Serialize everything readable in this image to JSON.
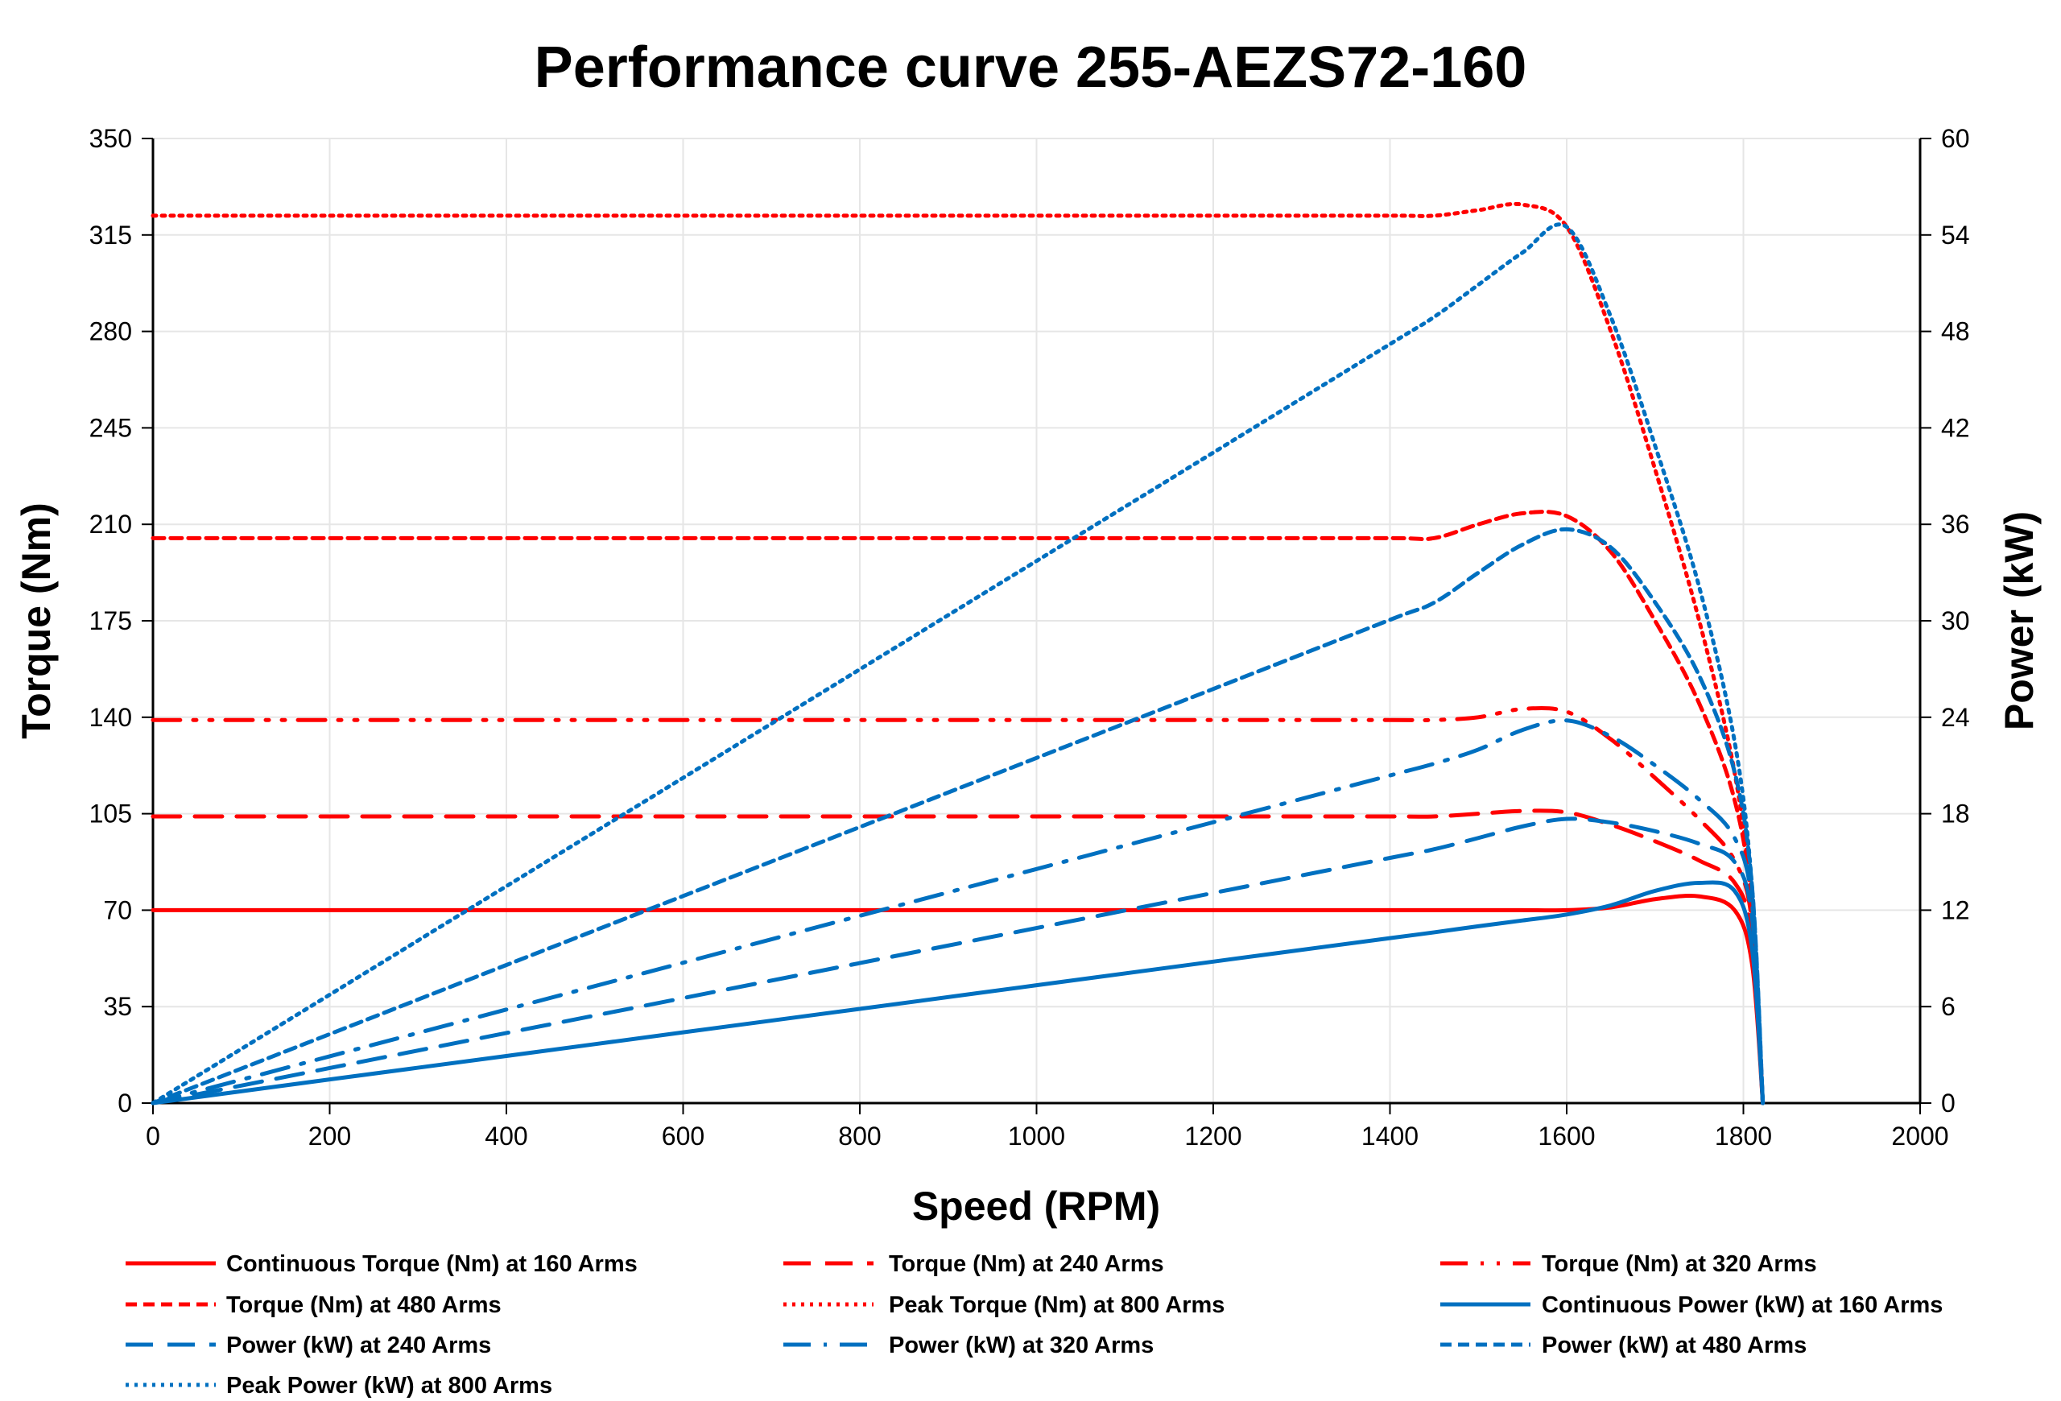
{
  "chart_data": {
    "type": "line",
    "title": "Performance curve 255-AEZS72-160",
    "xlabel": "Speed (RPM)",
    "ylabel": "Torque (Nm)",
    "y2label": "Power (kW)",
    "xlim": [
      0,
      2000
    ],
    "ylim": [
      0,
      350
    ],
    "y2lim": [
      0,
      60
    ],
    "xticks": [
      0,
      200,
      400,
      600,
      800,
      1000,
      1200,
      1400,
      1600,
      1800,
      2000
    ],
    "yticks": [
      0,
      35,
      70,
      105,
      140,
      175,
      210,
      245,
      280,
      315,
      350
    ],
    "y2ticks": [
      0,
      6,
      12,
      18,
      24,
      30,
      36,
      42,
      48,
      54,
      60
    ],
    "grid": true,
    "legend_position": "bottom",
    "colors": {
      "torque": "#ff0000",
      "power": "#0070c0"
    },
    "x": [
      0,
      200,
      400,
      600,
      800,
      1000,
      1200,
      1400,
      1450,
      1500,
      1550,
      1600,
      1650,
      1700,
      1750,
      1790,
      1810,
      1822
    ],
    "series": [
      {
        "name": "Continuous Torque (Nm) at 160 Arms",
        "axis": "left",
        "color": "#ff0000",
        "dash": "solid",
        "values": [
          70,
          70,
          70,
          70,
          70,
          70,
          70,
          70,
          70,
          70,
          70,
          70,
          71,
          74,
          75,
          70,
          50,
          0
        ]
      },
      {
        "name": "Torque (Nm) at 240 Arms",
        "axis": "left",
        "color": "#ff0000",
        "dash": "long-dash",
        "values": [
          104,
          104,
          104,
          104,
          104,
          104,
          104,
          104,
          104,
          105,
          106,
          105.5,
          101,
          95,
          88,
          80,
          60,
          0
        ]
      },
      {
        "name": "Torque (Nm) at 320 Arms",
        "axis": "left",
        "color": "#ff0000",
        "dash": "long-dash-dot-dot",
        "values": [
          139,
          139,
          139,
          139,
          139,
          139,
          139,
          139,
          139,
          140,
          143,
          142,
          132,
          118,
          103,
          88,
          65,
          0
        ]
      },
      {
        "name": "Torque (Nm) at 480 Arms",
        "axis": "left",
        "color": "#ff0000",
        "dash": "short-dash",
        "values": [
          205,
          205,
          205,
          205,
          205,
          205,
          205,
          205,
          205,
          210,
          214,
          213,
          200,
          175,
          145,
          110,
          70,
          0
        ]
      },
      {
        "name": "Peak Torque (Nm) at 800 Arms",
        "axis": "left",
        "color": "#ff0000",
        "dash": "dotted",
        "values": [
          322,
          322,
          322,
          322,
          322,
          322,
          322,
          322,
          322,
          324,
          326,
          318,
          280,
          230,
          175,
          120,
          70,
          0
        ]
      },
      {
        "name": "Continuous Power (kW) at 160 Arms",
        "axis": "right",
        "color": "#0070c0",
        "dash": "solid",
        "values": [
          0,
          1.47,
          2.93,
          4.4,
          5.86,
          7.33,
          8.8,
          10.26,
          10.62,
          11.0,
          11.36,
          11.73,
          12.3,
          13.2,
          13.7,
          13.2,
          9.5,
          0
        ]
      },
      {
        "name": "Power (kW) at 240 Arms",
        "axis": "right",
        "color": "#0070c0",
        "dash": "long-dash",
        "values": [
          0,
          2.18,
          4.36,
          6.53,
          8.71,
          10.89,
          13.07,
          15.25,
          15.79,
          16.49,
          17.21,
          17.68,
          17.45,
          16.91,
          16.13,
          15.0,
          11.4,
          0
        ]
      },
      {
        "name": "Power (kW) at 320 Arms",
        "axis": "right",
        "color": "#0070c0",
        "dash": "long-dash-dot",
        "values": [
          0,
          2.91,
          5.82,
          8.73,
          11.65,
          14.56,
          17.47,
          20.38,
          21.11,
          21.99,
          23.21,
          23.8,
          22.81,
          21.01,
          18.88,
          16.5,
          12.3,
          0
        ]
      },
      {
        "name": "Power (kW) at 480 Arms",
        "axis": "right",
        "color": "#0070c0",
        "dash": "short-dash",
        "values": [
          0,
          4.29,
          8.59,
          12.88,
          17.17,
          21.47,
          25.76,
          30.06,
          31.13,
          32.99,
          34.74,
          35.69,
          34.56,
          31.15,
          26.58,
          20.6,
          13.3,
          0
        ]
      },
      {
        "name": "Peak Power (kW) at 800 Arms",
        "axis": "right",
        "color": "#0070c0",
        "dash": "dotted",
        "values": [
          0,
          6.74,
          13.49,
          20.23,
          26.98,
          33.72,
          40.46,
          47.21,
          48.9,
          50.9,
          52.9,
          54.5,
          48.9,
          40.9,
          32.1,
          22.5,
          13.3,
          0
        ]
      }
    ]
  }
}
